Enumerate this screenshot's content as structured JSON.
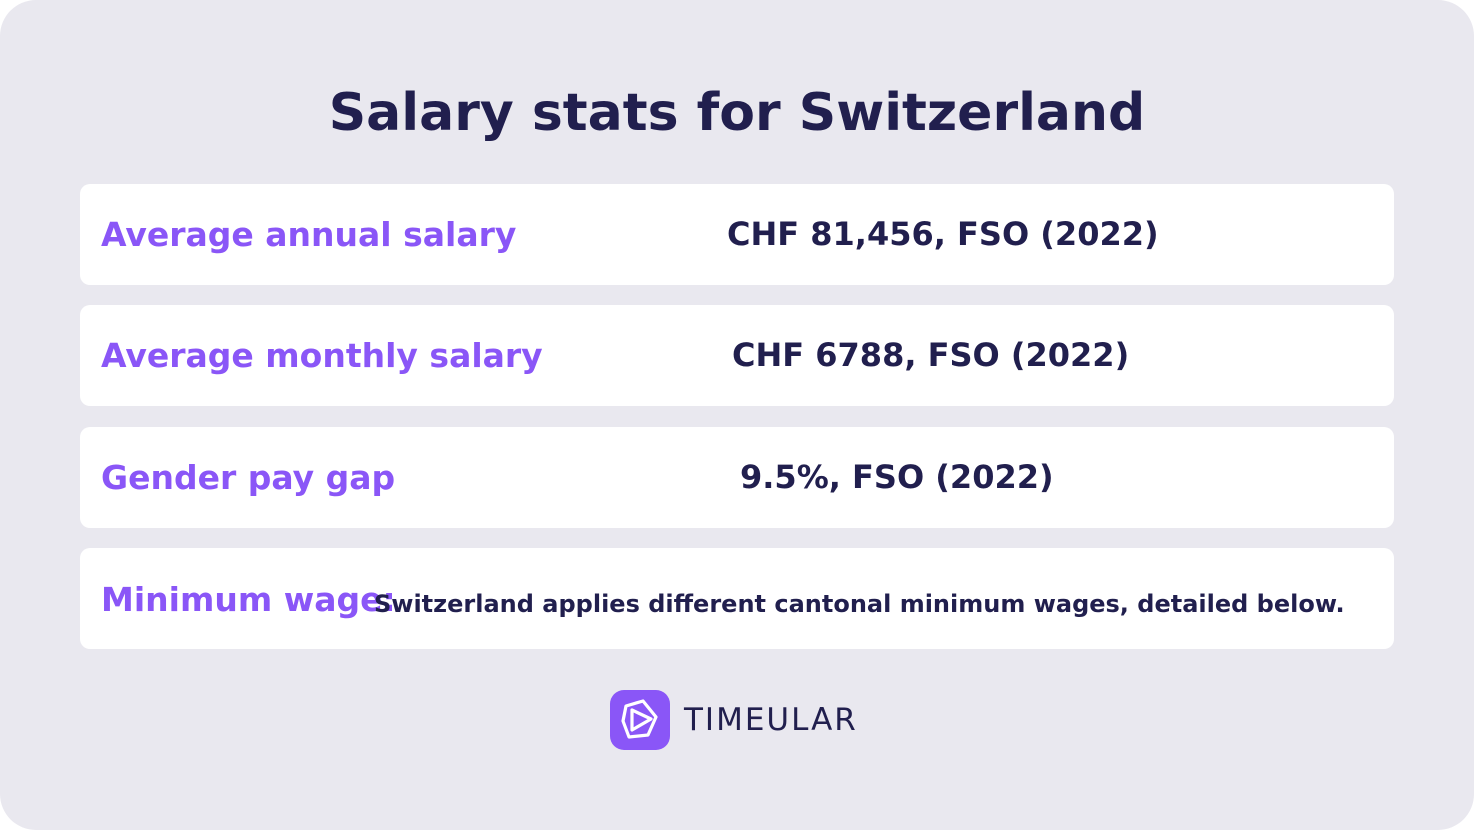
{
  "title": "Salary stats for Switzerland",
  "rows": [
    {
      "label": "Average annual salary",
      "value": "CHF 81,456, FSO (2022)"
    },
    {
      "label": "Average monthly salary",
      "value": "CHF 6788, FSO (2022)"
    },
    {
      "label": "Gender pay gap",
      "value": "9.5%, FSO (2022)"
    }
  ],
  "minimum_wage": {
    "label": "Minimum wage:",
    "text": "Switzerland applies different cantonal minimum wages, detailed below."
  },
  "brand": {
    "name": "TIMEULAR",
    "icon": "timeular-logo-icon",
    "color": "#8a56f7"
  },
  "colors": {
    "background": "#e9e8ef",
    "accent": "#8a56f7",
    "text": "#211f4e"
  }
}
